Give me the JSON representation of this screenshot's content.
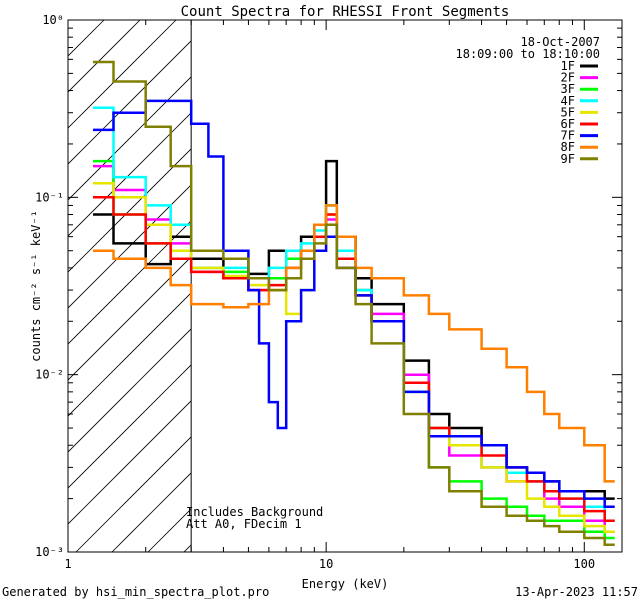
{
  "chart_data": {
    "type": "line",
    "title": "Count Spectra for RHESSI Front Segments",
    "xlabel": "Energy (keV)",
    "ylabel": "counts cm⁻² s⁻¹ keV⁻¹",
    "xscale": "log",
    "yscale": "log",
    "xlim": [
      1,
      140
    ],
    "ylim": [
      0.001,
      1
    ],
    "x_ticks": [
      {
        "value": 1,
        "label": "1"
      },
      {
        "value": 10,
        "label": "10"
      },
      {
        "value": 100,
        "label": "100"
      }
    ],
    "y_ticks": [
      {
        "value": 0.001,
        "label": "10⁻³"
      },
      {
        "value": 0.01,
        "label": "10⁻²"
      },
      {
        "value": 0.1,
        "label": "10⁻¹"
      },
      {
        "value": 1,
        "label": "10⁰"
      }
    ],
    "info_date": "18-Oct-2007",
    "info_time": "18:09:00 to 18:10:00",
    "annotation_line1": "Includes Background",
    "annotation_line2": "Att A0, FDecim 1",
    "excluded_region_max_kev": 3,
    "footer_left": "Generated by hsi_min_spectra_plot.pro",
    "footer_right": "13-Apr-2023 11:57",
    "series": [
      {
        "name": "1F",
        "color": "#000000",
        "points": [
          [
            1.25,
            0.08
          ],
          [
            1.5,
            0.055
          ],
          [
            2,
            0.042
          ],
          [
            2.5,
            0.06
          ],
          [
            3,
            0.045
          ],
          [
            4,
            0.035
          ],
          [
            5,
            0.037
          ],
          [
            6,
            0.05
          ],
          [
            7,
            0.05
          ],
          [
            8,
            0.06
          ],
          [
            9,
            0.07
          ],
          [
            10,
            0.16
          ],
          [
            11,
            0.06
          ],
          [
            13,
            0.035
          ],
          [
            15,
            0.025
          ],
          [
            20,
            0.012
          ],
          [
            25,
            0.006
          ],
          [
            30,
            0.005
          ],
          [
            40,
            0.004
          ],
          [
            50,
            0.003
          ],
          [
            60,
            0.0028
          ],
          [
            70,
            0.0025
          ],
          [
            80,
            0.0022
          ],
          [
            100,
            0.0022
          ],
          [
            120,
            0.002
          ]
        ]
      },
      {
        "name": "2F",
        "color": "#ff00ff",
        "points": [
          [
            1.25,
            0.15
          ],
          [
            1.5,
            0.11
          ],
          [
            2,
            0.075
          ],
          [
            2.5,
            0.055
          ],
          [
            3,
            0.038
          ],
          [
            4,
            0.035
          ],
          [
            5,
            0.03
          ],
          [
            6,
            0.035
          ],
          [
            7,
            0.045
          ],
          [
            8,
            0.05
          ],
          [
            9,
            0.06
          ],
          [
            10,
            0.075
          ],
          [
            11,
            0.045
          ],
          [
            13,
            0.03
          ],
          [
            15,
            0.022
          ],
          [
            20,
            0.01
          ],
          [
            25,
            0.005
          ],
          [
            30,
            0.0035
          ],
          [
            40,
            0.003
          ],
          [
            50,
            0.0025
          ],
          [
            60,
            0.0025
          ],
          [
            70,
            0.002
          ],
          [
            80,
            0.0018
          ],
          [
            100,
            0.0015
          ],
          [
            120,
            0.0013
          ]
        ]
      },
      {
        "name": "3F",
        "color": "#00ff00",
        "points": [
          [
            1.25,
            0.16
          ],
          [
            1.5,
            0.08
          ],
          [
            2,
            0.055
          ],
          [
            2.5,
            0.045
          ],
          [
            3,
            0.04
          ],
          [
            4,
            0.038
          ],
          [
            5,
            0.035
          ],
          [
            6,
            0.035
          ],
          [
            7,
            0.045
          ],
          [
            8,
            0.05
          ],
          [
            9,
            0.06
          ],
          [
            10,
            0.09
          ],
          [
            11,
            0.045
          ],
          [
            13,
            0.03
          ],
          [
            15,
            0.02
          ],
          [
            20,
            0.008
          ],
          [
            25,
            0.003
          ],
          [
            30,
            0.0025
          ],
          [
            40,
            0.002
          ],
          [
            50,
            0.0018
          ],
          [
            60,
            0.0016
          ],
          [
            70,
            0.0015
          ],
          [
            80,
            0.0015
          ],
          [
            100,
            0.0013
          ],
          [
            120,
            0.0012
          ]
        ]
      },
      {
        "name": "4F",
        "color": "#00ffff",
        "points": [
          [
            1.25,
            0.32
          ],
          [
            1.5,
            0.13
          ],
          [
            2,
            0.09
          ],
          [
            2.5,
            0.07
          ],
          [
            3,
            0.04
          ],
          [
            4,
            0.04
          ],
          [
            5,
            0.035
          ],
          [
            6,
            0.04
          ],
          [
            7,
            0.05
          ],
          [
            8,
            0.055
          ],
          [
            9,
            0.065
          ],
          [
            10,
            0.09
          ],
          [
            11,
            0.05
          ],
          [
            13,
            0.03
          ],
          [
            15,
            0.02
          ],
          [
            20,
            0.009
          ],
          [
            25,
            0.005
          ],
          [
            30,
            0.004
          ],
          [
            40,
            0.003
          ],
          [
            50,
            0.0028
          ],
          [
            60,
            0.0025
          ],
          [
            70,
            0.0022
          ],
          [
            80,
            0.002
          ],
          [
            100,
            0.0018
          ],
          [
            120,
            0.0015
          ]
        ]
      },
      {
        "name": "5F",
        "color": "#e6e600",
        "points": [
          [
            1.25,
            0.12
          ],
          [
            1.5,
            0.1
          ],
          [
            2,
            0.07
          ],
          [
            2.5,
            0.05
          ],
          [
            3,
            0.04
          ],
          [
            4,
            0.036
          ],
          [
            5,
            0.032
          ],
          [
            6,
            0.03
          ],
          [
            7,
            0.022
          ],
          [
            8,
            0.03
          ],
          [
            9,
            0.05
          ],
          [
            10,
            0.08
          ],
          [
            11,
            0.04
          ],
          [
            13,
            0.028
          ],
          [
            15,
            0.02
          ],
          [
            20,
            0.009
          ],
          [
            25,
            0.005
          ],
          [
            30,
            0.004
          ],
          [
            40,
            0.003
          ],
          [
            50,
            0.0025
          ],
          [
            60,
            0.002
          ],
          [
            70,
            0.0018
          ],
          [
            80,
            0.0016
          ],
          [
            100,
            0.0014
          ],
          [
            120,
            0.0013
          ]
        ]
      },
      {
        "name": "6F",
        "color": "#ff0000",
        "points": [
          [
            1.25,
            0.1
          ],
          [
            1.5,
            0.08
          ],
          [
            2,
            0.055
          ],
          [
            2.5,
            0.045
          ],
          [
            3,
            0.038
          ],
          [
            4,
            0.035
          ],
          [
            5,
            0.03
          ],
          [
            6,
            0.032
          ],
          [
            7,
            0.04
          ],
          [
            8,
            0.05
          ],
          [
            9,
            0.06
          ],
          [
            10,
            0.08
          ],
          [
            11,
            0.045
          ],
          [
            13,
            0.028
          ],
          [
            15,
            0.02
          ],
          [
            20,
            0.009
          ],
          [
            25,
            0.005
          ],
          [
            30,
            0.0045
          ],
          [
            40,
            0.0035
          ],
          [
            50,
            0.003
          ],
          [
            60,
            0.0025
          ],
          [
            70,
            0.0022
          ],
          [
            80,
            0.002
          ],
          [
            100,
            0.0017
          ],
          [
            120,
            0.0015
          ]
        ]
      },
      {
        "name": "7F",
        "color": "#0000ff",
        "points": [
          [
            1.25,
            0.24
          ],
          [
            1.5,
            0.3
          ],
          [
            2,
            0.35
          ],
          [
            2.5,
            0.35
          ],
          [
            3,
            0.26
          ],
          [
            3.5,
            0.17
          ],
          [
            4,
            0.05
          ],
          [
            5,
            0.03
          ],
          [
            5.5,
            0.015
          ],
          [
            6,
            0.007
          ],
          [
            6.5,
            0.005
          ],
          [
            7,
            0.02
          ],
          [
            8,
            0.03
          ],
          [
            9,
            0.05
          ],
          [
            10,
            0.06
          ],
          [
            11,
            0.04
          ],
          [
            13,
            0.028
          ],
          [
            15,
            0.02
          ],
          [
            20,
            0.008
          ],
          [
            25,
            0.0045
          ],
          [
            30,
            0.0045
          ],
          [
            40,
            0.004
          ],
          [
            50,
            0.003
          ],
          [
            60,
            0.0028
          ],
          [
            70,
            0.0025
          ],
          [
            80,
            0.0022
          ],
          [
            100,
            0.002
          ],
          [
            120,
            0.0018
          ]
        ]
      },
      {
        "name": "8F",
        "color": "#ff8000",
        "points": [
          [
            1.25,
            0.05
          ],
          [
            1.5,
            0.045
          ],
          [
            2,
            0.04
          ],
          [
            2.5,
            0.032
          ],
          [
            3,
            0.025
          ],
          [
            4,
            0.024
          ],
          [
            5,
            0.025
          ],
          [
            6,
            0.03
          ],
          [
            7,
            0.04
          ],
          [
            8,
            0.05
          ],
          [
            9,
            0.07
          ],
          [
            10,
            0.09
          ],
          [
            11,
            0.06
          ],
          [
            13,
            0.04
          ],
          [
            15,
            0.035
          ],
          [
            20,
            0.028
          ],
          [
            25,
            0.022
          ],
          [
            30,
            0.018
          ],
          [
            40,
            0.014
          ],
          [
            50,
            0.011
          ],
          [
            60,
            0.008
          ],
          [
            70,
            0.006
          ],
          [
            80,
            0.005
          ],
          [
            100,
            0.004
          ],
          [
            120,
            0.0025
          ]
        ]
      },
      {
        "name": "9F",
        "color": "#808000",
        "points": [
          [
            1.25,
            0.58
          ],
          [
            1.5,
            0.45
          ],
          [
            2,
            0.25
          ],
          [
            2.5,
            0.15
          ],
          [
            3,
            0.05
          ],
          [
            4,
            0.045
          ],
          [
            5,
            0.035
          ],
          [
            6,
            0.03
          ],
          [
            7,
            0.035
          ],
          [
            8,
            0.045
          ],
          [
            9,
            0.055
          ],
          [
            10,
            0.07
          ],
          [
            11,
            0.04
          ],
          [
            13,
            0.025
          ],
          [
            15,
            0.015
          ],
          [
            20,
            0.006
          ],
          [
            25,
            0.003
          ],
          [
            30,
            0.0022
          ],
          [
            40,
            0.0018
          ],
          [
            50,
            0.0016
          ],
          [
            60,
            0.0015
          ],
          [
            70,
            0.0014
          ],
          [
            80,
            0.0013
          ],
          [
            100,
            0.0012
          ],
          [
            120,
            0.0011
          ]
        ]
      }
    ]
  }
}
